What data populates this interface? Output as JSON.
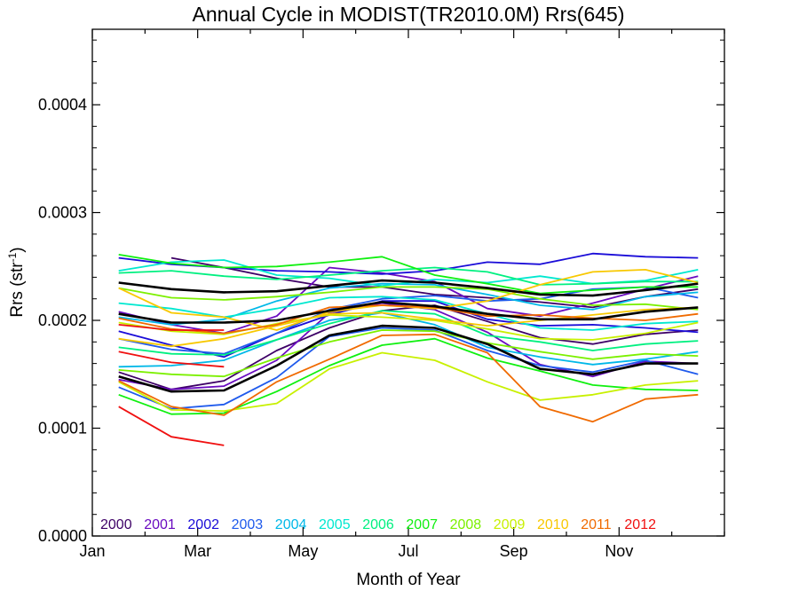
{
  "chart_data": {
    "type": "line",
    "title": "Annual Cycle in MODIST(TR2010.0M) Rrs(645)",
    "xlabel": "Month of Year",
    "ylabel_base": "Rrs (str",
    "ylabel_sup": "-1",
    "ylabel_close": ")",
    "xlim": [
      0,
      12
    ],
    "ylim": [
      0,
      0.00047
    ],
    "xticks": [
      {
        "label": "Jan",
        "x": 0
      },
      {
        "label": "Mar",
        "x": 2
      },
      {
        "label": "May",
        "x": 4
      },
      {
        "label": "Jul",
        "x": 6
      },
      {
        "label": "Sep",
        "x": 8
      },
      {
        "label": "Nov",
        "x": 10
      }
    ],
    "yticks": [
      {
        "label": "0.0000",
        "y": 0
      },
      {
        "label": "0.0001",
        "y": 0.0001
      },
      {
        "label": "0.0002",
        "y": 0.0002
      },
      {
        "label": "0.0003",
        "y": 0.0003
      },
      {
        "label": "0.0004",
        "y": 0.0004
      }
    ],
    "x_month_centers": [
      0.5,
      1.5,
      2.5,
      3.5,
      4.5,
      5.5,
      6.5,
      7.5,
      8.5,
      9.5,
      10.5,
      11.5
    ],
    "year_labels": [
      "2000",
      "2001",
      "2002",
      "2003",
      "2004",
      "2005",
      "2006",
      "2007",
      "2008",
      "2009",
      "2010",
      "2011",
      "2012"
    ],
    "series": [
      {
        "name": "2000",
        "color": "#3d0066",
        "x": [
          1.5,
          2.5,
          3.5,
          4.5,
          5.5,
          6.5,
          7.5,
          8.5,
          9.5,
          10.5,
          11.5
        ],
        "values": [
          0.000258,
          0.000249,
          0.000239,
          0.000231,
          0.000231,
          0.000224,
          0.000221,
          0.000217,
          0.000212,
          0.000222,
          0.000229
        ]
      },
      {
        "name": "2000",
        "color": "#3d0066",
        "x": [
          0.5,
          1.5,
          2.5,
          3.5,
          4.5,
          5.5,
          6.5,
          7.5,
          8.5,
          9.5,
          10.5,
          11.5
        ],
        "values": [
          0.000152,
          0.000136,
          0.000144,
          0.000172,
          0.000193,
          0.000209,
          0.000214,
          0.000199,
          0.000184,
          0.000178,
          0.000187,
          0.000191
        ]
      },
      {
        "name": "2001",
        "color": "#6a0bc0",
        "x": [
          0.5,
          1.5,
          2.5,
          3.5,
          4.5,
          5.5,
          6.5,
          7.5,
          8.5,
          9.5,
          10.5,
          11.5
        ],
        "values": [
          0.000208,
          0.000196,
          0.000188,
          0.000204,
          0.000249,
          0.000244,
          0.000236,
          0.000211,
          0.000204,
          0.000216,
          0.000229,
          0.000241
        ]
      },
      {
        "name": "2001",
        "color": "#6a0bc0",
        "x": [
          0.5,
          1.5,
          2.5,
          3.5,
          4.5,
          5.5,
          6.5,
          7.5,
          8.5,
          9.5,
          10.5,
          11.5
        ],
        "values": [
          0.000145,
          0.000136,
          0.000139,
          0.000163,
          0.000207,
          0.000216,
          0.00021,
          0.000189,
          0.000159,
          0.000148,
          0.000162,
          0.00016
        ]
      },
      {
        "name": "2002",
        "color": "#1a0cd8",
        "x": [
          0.5,
          1.5,
          2.5,
          3.5,
          4.5,
          5.5,
          6.5,
          7.5,
          8.5,
          9.5,
          10.5,
          11.5
        ],
        "values": [
          0.000258,
          0.000252,
          0.000249,
          0.000246,
          0.000245,
          0.000243,
          0.000246,
          0.000254,
          0.000252,
          0.000262,
          0.000259,
          0.000258
        ]
      },
      {
        "name": "2002",
        "color": "#1a0cd8",
        "x": [
          0.5,
          1.5,
          2.5,
          3.5,
          4.5,
          5.5,
          6.5,
          7.5,
          8.5,
          9.5,
          10.5,
          11.5
        ],
        "values": [
          0.00019,
          0.000177,
          0.000166,
          0.000188,
          0.000205,
          0.000218,
          0.000218,
          0.000201,
          0.000195,
          0.000196,
          0.000193,
          0.000189
        ]
      },
      {
        "name": "2003",
        "color": "#1f5aec",
        "x": [
          0.5,
          1.5,
          2.5,
          3.5,
          4.5,
          5.5,
          6.5,
          7.5,
          8.5,
          9.5,
          10.5,
          11.5
        ],
        "values": [
          0.000183,
          0.000173,
          0.000169,
          0.000188,
          0.00021,
          0.00022,
          0.000223,
          0.000218,
          0.00022,
          0.000229,
          0.000231,
          0.000221
        ]
      },
      {
        "name": "2003",
        "color": "#1f5aec",
        "x": [
          0.5,
          1.5,
          2.5,
          3.5,
          4.5,
          5.5,
          6.5,
          7.5,
          8.5,
          9.5,
          10.5,
          11.5
        ],
        "values": [
          0.000138,
          0.000118,
          0.000122,
          0.000147,
          0.000185,
          0.000193,
          0.000191,
          0.000172,
          0.000158,
          0.000152,
          0.000163,
          0.00015
        ]
      },
      {
        "name": "2004",
        "color": "#00b8e8",
        "x": [
          0.5,
          1.5,
          2.5,
          3.5,
          4.5,
          5.5,
          6.5,
          7.5,
          8.5,
          9.5,
          10.5,
          11.5
        ],
        "values": [
          0.000203,
          0.000196,
          0.000201,
          0.000218,
          0.00023,
          0.000234,
          0.000233,
          0.000224,
          0.000214,
          0.00021,
          0.000222,
          0.000226
        ]
      },
      {
        "name": "2004",
        "color": "#00b8e8",
        "x": [
          0.5,
          1.5,
          2.5,
          3.5,
          4.5,
          5.5,
          6.5,
          7.5,
          8.5,
          9.5,
          10.5,
          11.5
        ],
        "values": [
          0.000157,
          0.000158,
          0.000163,
          0.000182,
          0.0002,
          0.000207,
          0.000196,
          0.000175,
          0.000166,
          0.000159,
          0.000164,
          0.000171
        ]
      },
      {
        "name": "2005",
        "color": "#00e8d0",
        "x": [
          0.5,
          1.5,
          2.5,
          3.5,
          4.5,
          5.5,
          6.5,
          7.5,
          8.5,
          9.5,
          10.5,
          11.5
        ],
        "values": [
          0.000246,
          0.000254,
          0.000256,
          0.000242,
          0.000239,
          0.000232,
          0.000238,
          0.000235,
          0.000241,
          0.000234,
          0.000237,
          0.000247
        ]
      },
      {
        "name": "2005",
        "color": "#00e8d0",
        "x": [
          0.5,
          1.5,
          2.5,
          3.5,
          4.5,
          5.5,
          6.5,
          7.5,
          8.5,
          9.5,
          10.5,
          11.5
        ],
        "values": [
          0.000216,
          0.000211,
          0.000203,
          0.000211,
          0.000221,
          0.000222,
          0.000219,
          0.000206,
          0.000193,
          0.000191,
          0.000197,
          0.000199
        ]
      },
      {
        "name": "2006",
        "color": "#00f080",
        "x": [
          0.5,
          1.5,
          2.5,
          3.5,
          4.5,
          5.5,
          6.5,
          7.5,
          8.5,
          9.5,
          10.5,
          11.5
        ],
        "values": [
          0.000244,
          0.000246,
          0.000241,
          0.000238,
          0.000242,
          0.000246,
          0.000249,
          0.000245,
          0.000233,
          0.000234,
          0.000236,
          0.000236
        ]
      },
      {
        "name": "2006",
        "color": "#00f080",
        "x": [
          0.5,
          1.5,
          2.5,
          3.5,
          4.5,
          5.5,
          6.5,
          7.5,
          8.5,
          9.5,
          10.5,
          11.5
        ],
        "values": [
          0.000175,
          0.000169,
          0.000168,
          0.000182,
          0.000197,
          0.000209,
          0.000206,
          0.000186,
          0.00018,
          0.000172,
          0.000178,
          0.000181
        ]
      },
      {
        "name": "2007",
        "color": "#10f010",
        "x": [
          0.5,
          1.5,
          2.5,
          3.5,
          4.5,
          5.5,
          6.5,
          7.5,
          8.5,
          9.5,
          10.5,
          11.5
        ],
        "values": [
          0.000261,
          0.000253,
          0.000249,
          0.00025,
          0.000254,
          0.000259,
          0.000242,
          0.000234,
          0.000225,
          0.000228,
          0.000231,
          0.000231
        ]
      },
      {
        "name": "2007",
        "color": "#10f010",
        "x": [
          0.5,
          1.5,
          2.5,
          3.5,
          4.5,
          5.5,
          6.5,
          7.5,
          8.5,
          9.5,
          10.5,
          11.5
        ],
        "values": [
          0.000131,
          0.000113,
          0.000114,
          0.000134,
          0.000158,
          0.000177,
          0.000183,
          0.000165,
          0.000153,
          0.00014,
          0.000136,
          0.000135
        ]
      },
      {
        "name": "2008",
        "color": "#7cf000",
        "x": [
          0.5,
          1.5,
          2.5,
          3.5,
          4.5,
          5.5,
          6.5,
          7.5,
          8.5,
          9.5,
          10.5,
          11.5
        ],
        "values": [
          0.00023,
          0.000221,
          0.000219,
          0.000222,
          0.000226,
          0.000231,
          0.000231,
          0.000229,
          0.00022,
          0.000214,
          0.000215,
          0.00021
        ]
      },
      {
        "name": "2008",
        "color": "#7cf000",
        "x": [
          0.5,
          1.5,
          2.5,
          3.5,
          4.5,
          5.5,
          6.5,
          7.5,
          8.5,
          9.5,
          10.5,
          11.5
        ],
        "values": [
          0.000154,
          0.00015,
          0.000148,
          0.000165,
          0.00018,
          0.000191,
          0.00019,
          0.000179,
          0.000171,
          0.000164,
          0.000169,
          0.000167
        ]
      },
      {
        "name": "2009",
        "color": "#c8f000",
        "x": [
          0.5,
          1.5,
          2.5,
          3.5,
          4.5,
          5.5,
          6.5,
          7.5,
          8.5,
          9.5,
          10.5,
          11.5
        ],
        "values": [
          0.000198,
          0.00019,
          0.000187,
          0.000197,
          0.000205,
          0.000203,
          0.0002,
          0.000192,
          0.000183,
          0.000182,
          0.000188,
          0.000198
        ]
      },
      {
        "name": "2009",
        "color": "#c8f000",
        "x": [
          0.5,
          1.5,
          2.5,
          3.5,
          4.5,
          5.5,
          6.5,
          7.5,
          8.5,
          9.5,
          10.5,
          11.5
        ],
        "values": [
          0.000143,
          0.000117,
          0.000116,
          0.000123,
          0.000155,
          0.00017,
          0.000163,
          0.000143,
          0.000126,
          0.000131,
          0.00014,
          0.000144
        ]
      },
      {
        "name": "2010",
        "color": "#f8c800",
        "x": [
          0.5,
          1.5,
          2.5,
          3.5,
          4.5,
          5.5,
          6.5,
          7.5,
          8.5,
          9.5,
          10.5,
          11.5
        ],
        "values": [
          0.00023,
          0.000207,
          0.000203,
          0.000191,
          0.000208,
          0.000214,
          0.000211,
          0.000218,
          0.000233,
          0.000245,
          0.000247,
          0.000235
        ]
      },
      {
        "name": "2010",
        "color": "#f8c800",
        "x": [
          0.5,
          1.5,
          2.5,
          3.5,
          4.5,
          5.5,
          6.5,
          7.5,
          8.5,
          9.5,
          10.5,
          11.5
        ],
        "values": [
          0.000183,
          0.000176,
          0.000183,
          0.000195,
          0.000206,
          0.000207,
          0.000201,
          0.000195,
          0.0002,
          0.000205,
          0.00021,
          0.000212
        ]
      },
      {
        "name": "2011",
        "color": "#f06a00",
        "x": [
          0.5,
          1.5,
          2.5,
          3.5,
          4.5,
          5.5,
          6.5,
          7.5,
          8.5,
          9.5,
          10.5,
          11.5
        ],
        "values": [
          0.000144,
          0.00012,
          0.000112,
          0.000143,
          0.000164,
          0.000186,
          0.000187,
          0.00017,
          0.00012,
          0.000106,
          0.000127,
          0.000131
        ]
      },
      {
        "name": "2011",
        "color": "#f06a00",
        "x": [
          0.5,
          1.5,
          2.5,
          3.5,
          4.5,
          5.5,
          6.5,
          7.5,
          8.5,
          9.5,
          10.5,
          11.5
        ],
        "values": [
          0.000202,
          0.000192,
          0.000188,
          0.000196,
          0.000212,
          0.000214,
          0.000212,
          0.000204,
          0.000205,
          0.000202,
          0.0002,
          0.000206
        ]
      },
      {
        "name": "2012",
        "color": "#f01010",
        "x": [
          0.5,
          1.5,
          2.5
        ],
        "values": [
          0.00012,
          9.2e-05,
          8.4e-05
        ]
      },
      {
        "name": "2012",
        "color": "#f01010",
        "x": [
          0.5,
          1.5,
          2.5
        ],
        "values": [
          0.000171,
          0.000161,
          0.000157
        ]
      },
      {
        "name": "2012",
        "color": "#f01010",
        "x": [
          0.5,
          1.5,
          2.5
        ],
        "values": [
          0.000196,
          0.000191,
          0.000191
        ]
      },
      {
        "color": "#000000",
        "emphasis": true,
        "x": [
          0.5,
          1.5,
          2.5,
          3.5,
          4.5,
          5.5,
          6.5,
          7.5,
          8.5,
          9.5,
          10.5,
          11.5
        ],
        "values": [
          0.000235,
          0.000229,
          0.000226,
          0.000227,
          0.000232,
          0.000237,
          0.000235,
          0.00023,
          0.000224,
          0.000223,
          0.000228,
          0.000234
        ]
      },
      {
        "color": "#000000",
        "emphasis": true,
        "x": [
          0.5,
          1.5,
          2.5,
          3.5,
          4.5,
          5.5,
          6.5,
          7.5,
          8.5,
          9.5,
          10.5,
          11.5
        ],
        "values": [
          0.000206,
          0.000198,
          0.000198,
          0.0002,
          0.000209,
          0.000217,
          0.000213,
          0.000206,
          0.000201,
          0.000201,
          0.000208,
          0.000212
        ]
      },
      {
        "color": "#000000",
        "emphasis": true,
        "x": [
          0.5,
          1.5,
          2.5,
          3.5,
          4.5,
          5.5,
          6.5,
          7.5,
          8.5,
          9.5,
          10.5,
          11.5
        ],
        "values": [
          0.000148,
          0.000134,
          0.000135,
          0.000158,
          0.000186,
          0.000195,
          0.000193,
          0.000178,
          0.000155,
          0.00015,
          0.00016,
          0.00016
        ]
      }
    ]
  }
}
